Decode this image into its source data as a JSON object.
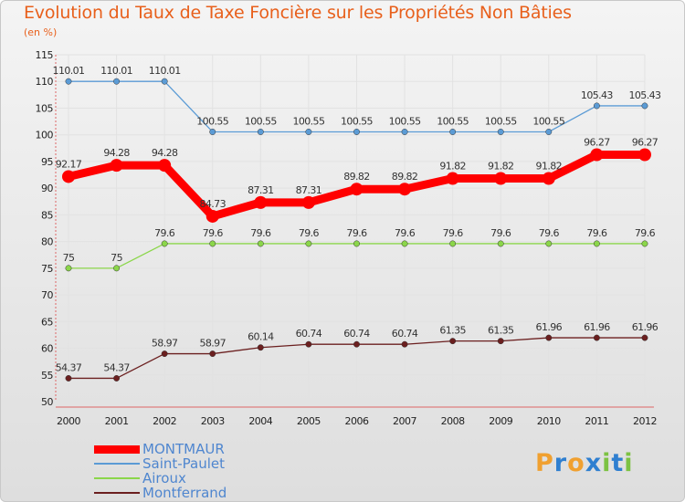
{
  "header": {
    "title": "Evolution du Taux de Taxe Foncière sur les Propriétés Non Bâties",
    "unit": "(en %)"
  },
  "chart_data": {
    "type": "line",
    "title": "Evolution du Taux de Taxe Foncière sur les Propriétés Non Bâties",
    "ylabel": "(en %)",
    "xlabel": "",
    "ylim": [
      50,
      115
    ],
    "yticks": [
      "50",
      "55",
      "60",
      "65",
      "70",
      "75",
      "80",
      "85",
      "90",
      "95",
      "100",
      "105",
      "110",
      "115"
    ],
    "categories": [
      "2000",
      "2001",
      "2002",
      "2003",
      "2004",
      "2005",
      "2006",
      "2007",
      "2008",
      "2009",
      "2010",
      "2011",
      "2012"
    ],
    "grid": true,
    "legend_position": "bottom-left",
    "series": [
      {
        "name": "Saint-Paulet",
        "color": "#5b9bd5",
        "values": [
          110.01,
          110.01,
          110.01,
          100.55,
          100.55,
          100.55,
          100.55,
          100.55,
          100.55,
          100.55,
          100.55,
          105.43,
          105.43
        ],
        "labels": [
          "110.01",
          "110.01",
          "110.01",
          "100.55",
          "100.55",
          "100.55",
          "100.55",
          "100.55",
          "100.55",
          "100.55",
          "100.55",
          "105.43",
          "105.43"
        ]
      },
      {
        "name": "MONTMAUR",
        "color": "#ff0000",
        "values": [
          92.17,
          94.28,
          94.28,
          84.73,
          87.31,
          87.31,
          89.82,
          89.82,
          91.82,
          91.82,
          91.82,
          96.27,
          96.27
        ],
        "labels": [
          "92.17",
          "94.28",
          "94.28",
          "84.73",
          "87.31",
          "87.31",
          "89.82",
          "89.82",
          "91.82",
          "91.82",
          "91.82",
          "96.27",
          "96.27"
        ]
      },
      {
        "name": "Airoux",
        "color": "#8bd64a",
        "values": [
          75,
          75,
          79.6,
          79.6,
          79.6,
          79.6,
          79.6,
          79.6,
          79.6,
          79.6,
          79.6,
          79.6,
          79.6
        ],
        "labels": [
          "75",
          "75",
          "79.6",
          "79.6",
          "79.6",
          "79.6",
          "79.6",
          "79.6",
          "79.6",
          "79.6",
          "79.6",
          "79.6",
          "79.6"
        ]
      },
      {
        "name": "Montferrand",
        "color": "#6b1f1f",
        "values": [
          54.37,
          54.37,
          58.97,
          58.97,
          60.14,
          60.74,
          60.74,
          60.74,
          61.35,
          61.35,
          61.96,
          61.96,
          61.96
        ],
        "labels": [
          "54.37",
          "54.37",
          "58.97",
          "58.97",
          "60.14",
          "60.74",
          "60.74",
          "60.74",
          "61.35",
          "61.35",
          "61.96",
          "61.96",
          "61.96"
        ]
      }
    ],
    "legend": [
      {
        "name": "MONTMAUR",
        "color": "#ff0000"
      },
      {
        "name": "Saint-Paulet",
        "color": "#5b9bd5"
      },
      {
        "name": "Airoux",
        "color": "#8bd64a"
      },
      {
        "name": "Montferrand",
        "color": "#6b1f1f"
      }
    ]
  },
  "logo": {
    "text": "Proxiti",
    "letters": [
      "P",
      "r",
      "o",
      "x",
      "i",
      "t",
      "i"
    ],
    "colors": [
      "#f0a030",
      "#2f7fd0",
      "#f0a030",
      "#2f7fd0",
      "#7cc242",
      "#2f7fd0",
      "#7cc242"
    ]
  }
}
